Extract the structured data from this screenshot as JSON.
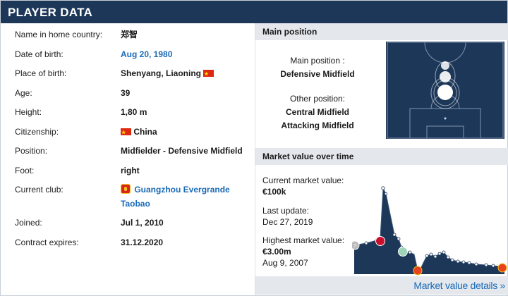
{
  "header": {
    "title": "PLAYER DATA"
  },
  "rows": [
    {
      "label": "Name in home country:",
      "value": "郑智"
    },
    {
      "label": "Date of birth:",
      "value": "Aug 20, 1980"
    },
    {
      "label": "Place of birth:",
      "value": "Shenyang, Liaoning"
    },
    {
      "label": "Age:",
      "value": "39"
    },
    {
      "label": "Height:",
      "value": "1,80 m"
    },
    {
      "label": "Citizenship:",
      "value": "China"
    },
    {
      "label": "Position:",
      "value": "Midfielder - Defensive Midfield"
    },
    {
      "label": "Foot:",
      "value": "right"
    },
    {
      "label": "Current club:",
      "value_line1": "Guangzhou Evergrande",
      "value_line2": "Taobao"
    },
    {
      "label": "Joined:",
      "value": "Jul 1, 2010"
    },
    {
      "label": "Contract expires:",
      "value": "31.12.2020"
    }
  ],
  "main_position": {
    "title": "Main position",
    "main_label": "Main position :",
    "main_value": "Defensive Midfield",
    "other_label": "Other position:",
    "other_values": [
      "Central Midfield",
      "Attacking Midfield"
    ]
  },
  "market_value": {
    "title": "Market value over time",
    "current_label": "Current market value:",
    "current_value": "€100k",
    "update_label": "Last update:",
    "update_value": "Dec 27, 2019",
    "highest_label": "Highest market value:",
    "highest_value": "€3.00m",
    "highest_date": "Aug 9, 2007",
    "details_link": "Market value details »"
  },
  "colors": {
    "header_bg": "#1d3759",
    "link": "#1a6ab7",
    "pitch": "#1d3759",
    "flag_red": "#de2910"
  }
}
